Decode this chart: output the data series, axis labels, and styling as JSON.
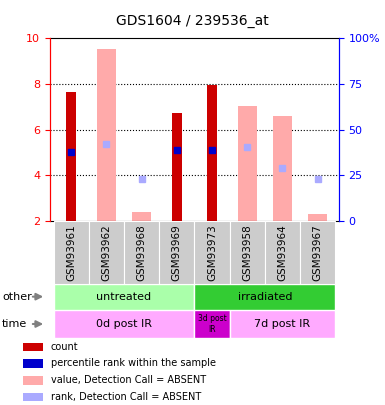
{
  "title": "GDS1604 / 239536_at",
  "samples": [
    "GSM93961",
    "GSM93962",
    "GSM93968",
    "GSM93969",
    "GSM93973",
    "GSM93958",
    "GSM93964",
    "GSM93967"
  ],
  "count_values": [
    7.65,
    null,
    null,
    6.75,
    7.95,
    null,
    null,
    null
  ],
  "rank_values": [
    5.0,
    null,
    null,
    5.1,
    5.1,
    null,
    null,
    null
  ],
  "absent_value_bars": [
    null,
    9.55,
    2.4,
    null,
    null,
    7.05,
    6.6,
    2.3
  ],
  "absent_rank_values": [
    null,
    5.35,
    3.85,
    null,
    null,
    5.25,
    4.3,
    3.85
  ],
  "ylim_left": [
    2,
    10
  ],
  "ylim_right": [
    0,
    100
  ],
  "yticks_left": [
    2,
    4,
    6,
    8,
    10
  ],
  "yticks_right": [
    0,
    25,
    50,
    75,
    100
  ],
  "ytick_labels_right": [
    "0",
    "25",
    "50",
    "75",
    "100%"
  ],
  "color_count": "#cc0000",
  "color_rank": "#0000cc",
  "color_absent_value": "#ffaaaa",
  "color_absent_rank": "#aaaaff",
  "color_untreated_light": "#aaffaa",
  "color_untreated_dark": "#44cc44",
  "color_irradiated": "#33cc33",
  "color_time_light": "#ffaaff",
  "color_time_dark": "#cc00cc",
  "color_xtick_bg": "#cccccc",
  "absent_bar_width": 0.55,
  "count_bar_width": 0.28,
  "rank_marker_size": 4,
  "legend_items": [
    {
      "label": "count",
      "color": "#cc0000"
    },
    {
      "label": "percentile rank within the sample",
      "color": "#0000cc"
    },
    {
      "label": "value, Detection Call = ABSENT",
      "color": "#ffaaaa"
    },
    {
      "label": "rank, Detection Call = ABSENT",
      "color": "#aaaaff"
    }
  ]
}
